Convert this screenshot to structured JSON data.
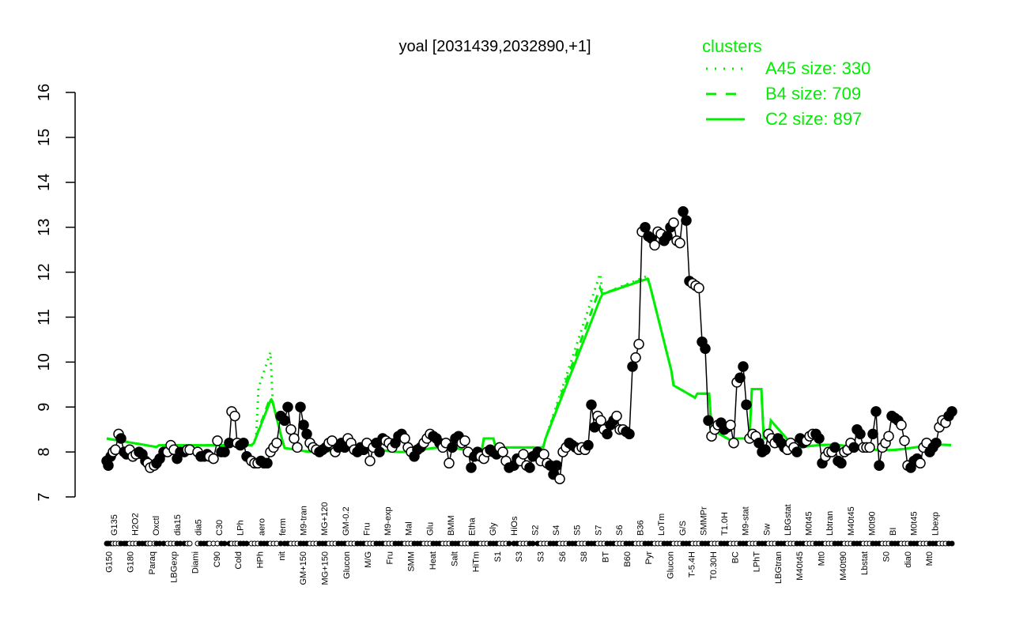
{
  "chart_data": {
    "type": "line",
    "title": "yoal [2031439,2032890,+1]",
    "xlabel": "",
    "ylabel": "",
    "ylim": [
      7,
      16
    ],
    "yticks": [
      7,
      8,
      9,
      10,
      11,
      12,
      13,
      14,
      15,
      16
    ],
    "grid": false,
    "legend": {
      "title": "clusters",
      "position": "top-right",
      "color": "#00ee00",
      "entries": [
        {
          "label": "A45 size: 330",
          "style": "dotted"
        },
        {
          "label": "B4 size: 709",
          "style": "dashed"
        },
        {
          "label": "C2 size: 897",
          "style": "solid"
        }
      ]
    },
    "x_labels_top": [
      "G135",
      "H2O2",
      "Oxctl",
      "dia15",
      "dia5",
      "C30",
      "LPh",
      "aero",
      "ferm",
      "M9-tran",
      "MG+120",
      "GM-0.2",
      "Fru",
      "M9-exp",
      "Mal",
      "Glu",
      "BMM",
      "Etha",
      "Gly",
      "HiOs",
      "S2",
      "S4",
      "S5",
      "S7",
      "S6",
      "B36",
      "LoTm",
      "G/S",
      "SMMPr",
      "T1.0H",
      "M9-stat",
      "Sw",
      "LBGstat",
      "M0t45",
      "Lbtran",
      "M40t45",
      "M0t90",
      "BI",
      "M0t45",
      "Lbexp"
    ],
    "x_labels_bottom": [
      "G150",
      "G180",
      "Paraq",
      "LBGexp",
      "Diami",
      "C90",
      "Cold",
      "HPh",
      "nit",
      "GM+150",
      "MG+150",
      "Glucon",
      "M/G",
      "Fru",
      "SMM",
      "Heat",
      "Salt",
      "HiTm",
      "S1",
      "S3",
      "S3",
      "S6",
      "S8",
      "BT",
      "B60",
      "Pyr",
      "Glucon",
      "T-5.4H",
      "T0.30H",
      "BC",
      "LPhT",
      "LBGtran",
      "M40t45",
      "Mt0",
      "M40t90",
      "Lbstat",
      "S0",
      "dia0",
      "Mt0"
    ],
    "x": [
      135,
      137,
      140,
      143,
      146,
      150,
      153,
      157,
      160,
      164,
      168,
      172,
      176,
      180,
      184,
      187,
      190,
      195,
      198,
      202,
      207,
      212,
      216,
      220,
      224,
      228,
      233,
      237,
      240,
      250,
      254,
      258,
      262,
      265,
      270,
      275,
      280,
      284,
      290,
      293,
      297,
      300,
      304,
      308,
      312,
      318,
      322,
      326,
      330,
      334,
      338,
      342,
      346,
      350,
      355,
      360,
      364,
      368,
      372,
      376,
      380,
      384,
      388,
      392,
      396,
      400,
      404,
      408,
      412,
      416,
      420,
      424,
      428,
      432,
      436,
      440,
      444,
      448,
      452,
      456,
      460,
      464,
      468,
      472,
      476,
      480,
      484,
      488,
      492,
      496,
      500,
      504,
      508,
      512,
      516,
      520,
      524,
      528,
      532,
      536,
      540,
      544,
      548,
      552,
      556,
      560,
      564,
      568,
      572,
      576,
      580,
      584,
      588,
      592,
      596,
      600,
      604,
      608,
      612,
      616,
      620,
      624,
      628,
      632,
      636,
      640,
      644,
      650,
      654,
      658,
      662,
      666,
      670,
      674,
      680,
      684,
      688,
      692,
      696,
      700,
      704,
      708,
      712,
      716,
      720,
      724,
      728,
      732,
      736,
      740,
      744,
      748,
      752,
      756,
      760,
      764,
      768,
      772,
      776,
      780,
      784,
      788,
      792,
      796,
      800,
      804,
      808,
      812,
      816,
      820,
      824,
      828,
      832,
      836,
      840,
      844,
      848,
      852,
      856,
      860,
      864,
      868,
      872,
      876,
      880,
      884,
      888,
      892,
      896,
      900,
      904,
      908,
      912,
      916,
      920,
      924,
      928,
      932,
      936,
      940,
      944,
      948,
      952,
      956,
      960,
      964,
      968,
      972,
      976,
      980,
      984,
      988,
      992,
      996,
      1000,
      1004,
      1008,
      1012,
      1016,
      1020,
      1024,
      1028,
      1032,
      1036,
      1040,
      1044,
      1048,
      1052,
      1056,
      1060,
      1064,
      1068,
      1072,
      1076,
      1080,
      1084,
      1088,
      1092,
      1096,
      1100,
      1104,
      1108,
      1112,
      1116,
      1120,
      1124,
      1128,
      1132,
      1136,
      1140,
      1144,
      1148,
      1152,
      1156,
      1160,
      1164,
      1168,
      1172,
      1176,
      1180,
      1184,
      1188,
      1192,
      1196,
      1200,
      1204
    ],
    "series": [
      {
        "name": "expression",
        "style": "black line with open/filled circles",
        "values": [
          7.8,
          7.7,
          7.9,
          8.0,
          8.05,
          8.4,
          8.3,
          8.0,
          7.95,
          8.05,
          7.9,
          7.95,
          8.0,
          7.95,
          7.8,
          7.75,
          7.65,
          7.7,
          7.75,
          7.85,
          8.0,
          8.0,
          8.15,
          8.05,
          7.85,
          8.0,
          8.0,
          8.05,
          8.05,
          8.0,
          7.9,
          7.9,
          7.95,
          7.9,
          7.85,
          8.25,
          8.0,
          8.0,
          8.2,
          8.9,
          8.8,
          8.2,
          8.15,
          8.2,
          7.9,
          7.8,
          7.75,
          7.75,
          7.8,
          7.75,
          7.75,
          8.0,
          8.1,
          8.2,
          8.8,
          8.7,
          9.0,
          8.5,
          8.3,
          8.1,
          9.0,
          8.6,
          8.4,
          8.2,
          8.1,
          8.05,
          8.0,
          8.05,
          8.1,
          8.2,
          8.25,
          8.0,
          8.1,
          8.2,
          8.1,
          8.3,
          8.2,
          8.05,
          8.0,
          8.1,
          8.05,
          8.2,
          7.8,
          8.1,
          8.2,
          8.0,
          8.3,
          8.25,
          8.2,
          8.1,
          8.2,
          8.35,
          8.4,
          8.3,
          8.1,
          8.0,
          7.9,
          8.05,
          8.1,
          8.2,
          8.3,
          8.4,
          8.35,
          8.3,
          8.2,
          8.1,
          8.2,
          7.75,
          8.1,
          8.3,
          8.35,
          8.2,
          8.25,
          8.0,
          7.65,
          7.9,
          8.0,
          7.9,
          7.85,
          8.0,
          8.05,
          8.0,
          7.95,
          8.1,
          8.0,
          7.8,
          7.65,
          7.7,
          7.85,
          7.8,
          7.95,
          7.7,
          7.65,
          7.9,
          8.0,
          7.8,
          7.95,
          7.75,
          7.7,
          7.5,
          7.7,
          7.4,
          8.0,
          8.1,
          8.2,
          8.15,
          8.1,
          8.05,
          8.1,
          8.05,
          8.15,
          9.05,
          8.55,
          8.8,
          8.7,
          8.5,
          8.4,
          8.6,
          8.7,
          8.8,
          8.5,
          8.5,
          8.45,
          8.4,
          9.9,
          10.1,
          10.4,
          12.9,
          13.0,
          12.8,
          12.75,
          12.6,
          12.9,
          12.85,
          12.7,
          12.8,
          13.0,
          13.1,
          12.7,
          12.65,
          13.35,
          13.15,
          11.8,
          11.75,
          11.7,
          11.65,
          10.45,
          10.3,
          8.7,
          8.35,
          8.5,
          8.6,
          8.65,
          8.5,
          8.55,
          8.6,
          8.2,
          9.55,
          9.65,
          9.9,
          9.05,
          8.3,
          8.4,
          8.35,
          8.2,
          8.0,
          8.05,
          8.4,
          8.3,
          8.2,
          8.3,
          8.2,
          8.1,
          8.05,
          8.2,
          8.1,
          8.0,
          8.3,
          8.2,
          8.25,
          8.35,
          8.4,
          8.4,
          8.3,
          7.75,
          7.9,
          8.0,
          8.0,
          8.1,
          7.8,
          7.75,
          8.0,
          8.05,
          8.2,
          8.1,
          8.5,
          8.4,
          8.1,
          8.1,
          8.1,
          8.4,
          8.9,
          7.7,
          8.1,
          8.2,
          8.35,
          8.8,
          8.75,
          8.7,
          8.6,
          8.25,
          7.7,
          7.65,
          7.8,
          7.85,
          7.75,
          8.1,
          8.2,
          8.0,
          8.1,
          8.2,
          8.55,
          8.7,
          8.65,
          8.8,
          8.9,
          8.85,
          8.75,
          8.4,
          8.3,
          8.4,
          8.3,
          8.0,
          7.6,
          7.55,
          7.75,
          8.05,
          8.1,
          8.2,
          7.85,
          7.7,
          7.6,
          7.65,
          7.7,
          7.8
        ]
      },
      {
        "name": "C2 size: 897",
        "style": "solid",
        "values_summary": "~8.3 at left, ~9.3 near ferm, ~8.0–8.2 through middle, rises from ~9 at S3 to ~11.5 at S6, peaks ~11.85 near S6 (x≈818), drops to ~9.0 at B60, ~9.3 near G/S, ~9.5 spike near T1.0H, ~8.8 near BC, ~8.0–8.1 thereafter"
      },
      {
        "name": "B4 size: 709",
        "style": "dashed",
        "values_summary": "tracks C2 closely; reaches ~12.2 near S6 peak"
      },
      {
        "name": "A45 size: 330",
        "style": "dotted",
        "values_summary": "tracks C2; spikes ~10.1 near ferm, ~12.6 near S6 peak, ~9.0 after B36"
      }
    ]
  },
  "points": {
    "radius": 6,
    "filled_color": "#000000",
    "open_fill": "#ffffff"
  },
  "colors": {
    "cluster_green": "#00ee00",
    "axis": "#000000",
    "data": "#000000"
  }
}
